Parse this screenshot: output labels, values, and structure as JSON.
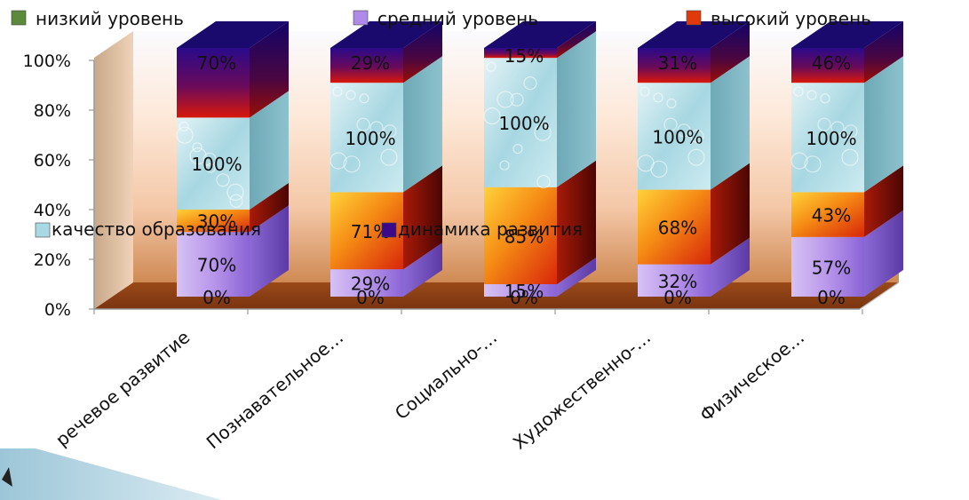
{
  "chart_data": {
    "type": "bar",
    "stacked": true,
    "three_d": true,
    "categories": [
      "речевое развитие",
      "Познавательное…",
      "Социально-…",
      "Художественно-…",
      "Физическое…"
    ],
    "yticks": [
      "0%",
      "20%",
      "40%",
      "60%",
      "80%",
      "100%"
    ],
    "ylim": [
      0,
      100
    ],
    "legend_top": [
      {
        "label": "низкий уровень",
        "color": "#5a8a3a"
      },
      {
        "label": "средний уровень",
        "color": "#b08ae8"
      },
      {
        "label": "высокий уровень",
        "color": "#e03a0a"
      }
    ],
    "legend_mid": [
      {
        "label": "качество образования",
        "color": "#a9d9e3"
      },
      {
        "label": "динамика развития",
        "color": "#3a0a8a"
      }
    ],
    "series": [
      {
        "name": "низкий уровень",
        "values": [
          0,
          0,
          0,
          0,
          0
        ],
        "labels": [
          "0%",
          "0%",
          "0%",
          "0%",
          "0%"
        ]
      },
      {
        "name": "средний уровень",
        "values": [
          26,
          11,
          5,
          13,
          24
        ],
        "labels": [
          "70%",
          "29%",
          "15%",
          "32%",
          "57%"
        ]
      },
      {
        "name": "высокий уровень",
        "values": [
          9,
          31,
          39,
          30,
          18
        ],
        "labels": [
          "30%",
          "71%",
          "85%",
          "68%",
          "43%"
        ]
      },
      {
        "name": "качество образования",
        "values": [
          37,
          44,
          52,
          43,
          44
        ],
        "labels": [
          "100%",
          "100%",
          "100%",
          "100%",
          "100%"
        ]
      },
      {
        "name": "динамика развития",
        "values": [
          28,
          14,
          4,
          14,
          14
        ],
        "labels": [
          "70%",
          "29%",
          "15%",
          "31%",
          "46%"
        ]
      }
    ]
  }
}
